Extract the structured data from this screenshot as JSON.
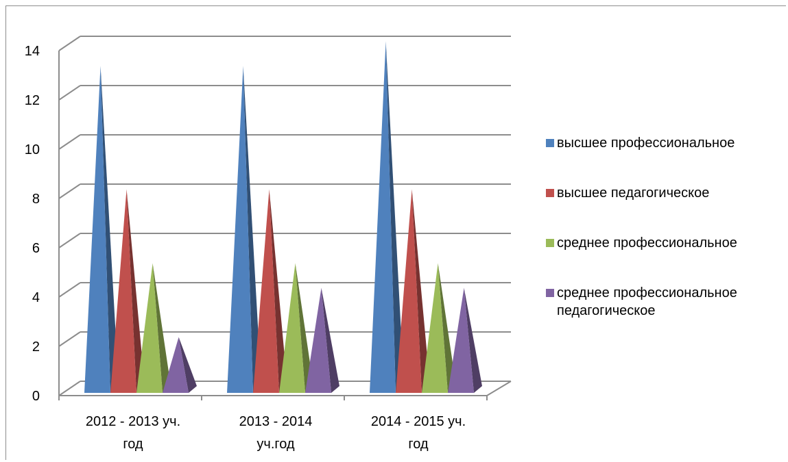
{
  "chart_data": {
    "type": "bar",
    "style": "3d-pyramid",
    "categories": [
      "2012 - 2013 уч.\nгод",
      "2013 - 2014\nуч.год",
      "2014 - 2015 уч.\nгод"
    ],
    "series": [
      {
        "name": "высшее профессиональное",
        "color": "#4f81bd",
        "values": [
          13,
          13,
          14
        ]
      },
      {
        "name": "высшее педагогическое",
        "color": "#c0504d",
        "values": [
          8,
          8,
          8
        ]
      },
      {
        "name": "среднее профессиональное",
        "color": "#9bbb59",
        "values": [
          5,
          5,
          5
        ]
      },
      {
        "name": "среднее профессиональное педагогическое",
        "color": "#8064a2",
        "values": [
          2,
          4,
          4
        ]
      }
    ],
    "ylim": [
      0,
      14
    ],
    "yticks": [
      "0",
      "2",
      "4",
      "6",
      "8",
      "10",
      "12",
      "14"
    ],
    "grid": true,
    "legend_position": "right"
  }
}
